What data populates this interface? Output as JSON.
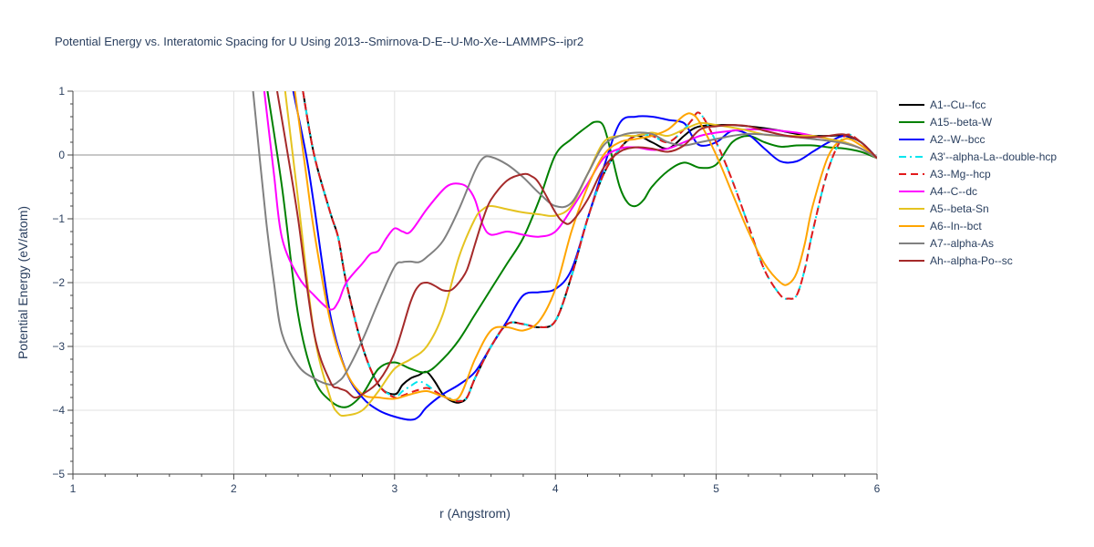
{
  "chart_data": {
    "type": "line",
    "title": "Potential Energy vs. Interatomic Spacing for U Using 2013--Smirnova-D-E--U-Mo-Xe--LAMMPS--ipr2",
    "xlabel": "r (Angstrom)",
    "ylabel": "Potential Energy (eV/atom)",
    "xlim": [
      1,
      6
    ],
    "ylim": [
      -5,
      1
    ],
    "xticks": [
      1,
      2,
      3,
      4,
      5,
      6
    ],
    "xtick_labels": [
      "1",
      "2",
      "3",
      "4",
      "5",
      "6"
    ],
    "yticks": [
      -5,
      -4,
      -3,
      -2,
      -1,
      0,
      1
    ],
    "ytick_labels": [
      "−5",
      "−4",
      "−3",
      "−2",
      "−1",
      "0",
      "1"
    ],
    "grid": true,
    "legend_position": "right",
    "series": [
      {
        "name": "A1--Cu--fcc",
        "color": "#000000",
        "dash": "solid",
        "x": [
          2.43,
          2.5,
          2.6,
          2.65,
          2.7,
          2.8,
          2.9,
          3.0,
          3.05,
          3.1,
          3.15,
          3.2,
          3.25,
          3.3,
          3.35,
          3.4,
          3.45,
          3.5,
          3.6,
          3.7,
          3.8,
          3.9,
          4.0,
          4.1,
          4.2,
          4.3,
          4.4,
          4.5,
          4.6,
          4.7,
          4.8,
          4.85,
          4.9,
          5.0,
          5.1,
          5.2,
          5.3,
          5.4,
          5.5,
          5.6,
          5.7,
          5.8,
          5.9,
          6.0
        ],
        "y": [
          1.0,
          0.0,
          -0.9,
          -1.3,
          -2.0,
          -3.0,
          -3.6,
          -3.75,
          -3.6,
          -3.5,
          -3.45,
          -3.4,
          -3.55,
          -3.75,
          -3.85,
          -3.88,
          -3.8,
          -3.5,
          -3.0,
          -2.65,
          -2.65,
          -2.7,
          -2.6,
          -1.9,
          -1.0,
          -0.3,
          0.1,
          0.3,
          0.2,
          0.1,
          0.3,
          0.4,
          0.45,
          0.47,
          0.47,
          0.45,
          0.42,
          0.38,
          0.33,
          0.3,
          0.3,
          0.3,
          0.2,
          -0.05
        ]
      },
      {
        "name": "A15--beta-W",
        "color": "#008000",
        "dash": "solid",
        "x": [
          2.21,
          2.3,
          2.4,
          2.5,
          2.6,
          2.7,
          2.8,
          2.9,
          3.0,
          3.1,
          3.2,
          3.3,
          3.4,
          3.5,
          3.6,
          3.7,
          3.8,
          3.9,
          4.0,
          4.1,
          4.2,
          4.25,
          4.3,
          4.35,
          4.4,
          4.45,
          4.5,
          4.55,
          4.6,
          4.7,
          4.8,
          4.9,
          5.0,
          5.1,
          5.2,
          5.3,
          5.4,
          5.5,
          5.6,
          5.7,
          5.8,
          5.9,
          6.0
        ],
        "y": [
          1.0,
          -0.5,
          -2.5,
          -3.5,
          -3.85,
          -3.95,
          -3.75,
          -3.35,
          -3.25,
          -3.35,
          -3.4,
          -3.2,
          -2.9,
          -2.5,
          -2.1,
          -1.7,
          -1.3,
          -0.7,
          0.0,
          0.25,
          0.45,
          0.52,
          0.45,
          0.0,
          -0.5,
          -0.75,
          -0.8,
          -0.7,
          -0.5,
          -0.25,
          -0.12,
          -0.2,
          -0.15,
          0.2,
          0.3,
          0.2,
          0.13,
          0.15,
          0.15,
          0.12,
          0.1,
          0.05,
          -0.05
        ]
      },
      {
        "name": "A2--W--bcc",
        "color": "#0000ff",
        "dash": "solid",
        "x": [
          2.37,
          2.45,
          2.5,
          2.6,
          2.7,
          2.8,
          2.9,
          3.0,
          3.1,
          3.15,
          3.2,
          3.3,
          3.4,
          3.5,
          3.6,
          3.7,
          3.8,
          3.9,
          4.0,
          4.1,
          4.2,
          4.3,
          4.4,
          4.5,
          4.6,
          4.7,
          4.8,
          4.85,
          4.9,
          5.0,
          5.1,
          5.2,
          5.3,
          5.4,
          5.5,
          5.6,
          5.7,
          5.8,
          5.9,
          6.0
        ],
        "y": [
          1.0,
          0.0,
          -0.8,
          -2.5,
          -3.4,
          -3.8,
          -4.0,
          -4.1,
          -4.15,
          -4.1,
          -3.95,
          -3.75,
          -3.6,
          -3.4,
          -3.0,
          -2.6,
          -2.2,
          -2.15,
          -2.1,
          -1.8,
          -1.0,
          -0.2,
          0.5,
          0.6,
          0.6,
          0.55,
          0.5,
          0.3,
          0.15,
          0.2,
          0.38,
          0.32,
          0.1,
          -0.1,
          -0.1,
          0.05,
          0.2,
          0.3,
          0.2,
          -0.05
        ]
      },
      {
        "name": "A3'--alpha-La--double-hcp",
        "color": "#00e5ee",
        "dash": "dashdot",
        "x": [
          2.43,
          2.5,
          2.6,
          2.65,
          2.7,
          2.8,
          2.9,
          3.0,
          3.05,
          3.1,
          3.15,
          3.2,
          3.25,
          3.3,
          3.35,
          3.4,
          3.45,
          3.5,
          3.6,
          3.7,
          3.8,
          3.9,
          4.0,
          4.1,
          4.2,
          4.3,
          4.4,
          4.5,
          4.6,
          4.7,
          4.8,
          4.85,
          4.9,
          5.0,
          5.1,
          5.2,
          5.3,
          5.4,
          5.45,
          5.5,
          5.55,
          5.6,
          5.7,
          5.8,
          5.9,
          6.0
        ],
        "y": [
          1.0,
          0.0,
          -0.9,
          -1.3,
          -2.0,
          -3.0,
          -3.6,
          -3.78,
          -3.7,
          -3.62,
          -3.55,
          -3.6,
          -3.7,
          -3.78,
          -3.82,
          -3.85,
          -3.8,
          -3.5,
          -3.0,
          -2.65,
          -2.65,
          -2.7,
          -2.6,
          -1.9,
          -1.0,
          -0.3,
          0.1,
          0.3,
          0.3,
          0.2,
          0.4,
          0.55,
          0.65,
          0.2,
          -0.4,
          -1.1,
          -1.8,
          -2.2,
          -2.25,
          -2.2,
          -1.8,
          -1.2,
          -0.2,
          0.3,
          0.2,
          -0.05
        ]
      },
      {
        "name": "A3--Mg--hcp",
        "color": "#e31a1c",
        "dash": "dash",
        "x": [
          2.43,
          2.5,
          2.6,
          2.65,
          2.7,
          2.8,
          2.9,
          3.0,
          3.05,
          3.1,
          3.15,
          3.2,
          3.25,
          3.3,
          3.35,
          3.4,
          3.45,
          3.5,
          3.6,
          3.7,
          3.8,
          3.9,
          4.0,
          4.1,
          4.2,
          4.3,
          4.4,
          4.5,
          4.6,
          4.7,
          4.8,
          4.85,
          4.9,
          5.0,
          5.1,
          5.2,
          5.3,
          5.4,
          5.45,
          5.5,
          5.55,
          5.6,
          5.7,
          5.8,
          5.9,
          6.0
        ],
        "y": [
          1.0,
          0.0,
          -0.9,
          -1.3,
          -2.0,
          -3.0,
          -3.6,
          -3.8,
          -3.77,
          -3.72,
          -3.68,
          -3.65,
          -3.7,
          -3.78,
          -3.83,
          -3.86,
          -3.8,
          -3.5,
          -3.0,
          -2.65,
          -2.65,
          -2.7,
          -2.6,
          -1.9,
          -1.0,
          -0.3,
          0.1,
          0.3,
          0.3,
          0.2,
          0.4,
          0.55,
          0.65,
          0.2,
          -0.4,
          -1.1,
          -1.8,
          -2.2,
          -2.25,
          -2.2,
          -1.8,
          -1.2,
          -0.2,
          0.3,
          0.2,
          -0.05
        ]
      },
      {
        "name": "A4--C--dc",
        "color": "#ff00ff",
        "dash": "solid",
        "x": [
          2.19,
          2.25,
          2.3,
          2.4,
          2.5,
          2.6,
          2.65,
          2.7,
          2.8,
          2.85,
          2.9,
          2.95,
          3.0,
          3.05,
          3.1,
          3.2,
          3.3,
          3.35,
          3.4,
          3.45,
          3.5,
          3.55,
          3.6,
          3.7,
          3.8,
          3.9,
          4.0,
          4.1,
          4.2,
          4.3,
          4.4,
          4.5,
          4.6,
          4.7,
          4.8,
          4.9,
          5.0,
          5.1,
          5.2,
          5.3,
          5.4,
          5.5,
          5.6,
          5.7,
          5.8,
          5.9,
          6.0
        ],
        "y": [
          1.0,
          -0.3,
          -1.3,
          -1.9,
          -2.2,
          -2.42,
          -2.3,
          -2.0,
          -1.7,
          -1.55,
          -1.5,
          -1.3,
          -1.15,
          -1.2,
          -1.2,
          -0.85,
          -0.55,
          -0.46,
          -0.45,
          -0.5,
          -0.7,
          -1.1,
          -1.25,
          -1.2,
          -1.25,
          -1.28,
          -1.2,
          -0.85,
          -0.45,
          -0.05,
          0.1,
          0.12,
          0.08,
          0.1,
          0.2,
          0.3,
          0.35,
          0.38,
          0.4,
          0.4,
          0.38,
          0.35,
          0.3,
          0.25,
          0.2,
          0.1,
          -0.05
        ]
      },
      {
        "name": "A5--beta-Sn",
        "color": "#e5c320",
        "dash": "solid",
        "x": [
          2.32,
          2.4,
          2.5,
          2.6,
          2.65,
          2.7,
          2.8,
          2.9,
          3.0,
          3.1,
          3.2,
          3.3,
          3.4,
          3.5,
          3.55,
          3.6,
          3.7,
          3.8,
          3.9,
          4.0,
          4.1,
          4.2,
          4.3,
          4.4,
          4.5,
          4.6,
          4.7,
          4.8,
          4.9,
          5.0,
          5.1,
          5.2,
          5.3,
          5.4,
          5.5,
          5.6,
          5.7,
          5.8,
          5.9,
          6.0
        ],
        "y": [
          1.0,
          -0.7,
          -2.8,
          -3.8,
          -4.05,
          -4.08,
          -4.0,
          -3.7,
          -3.35,
          -3.2,
          -3.0,
          -2.5,
          -1.6,
          -1.0,
          -0.85,
          -0.8,
          -0.85,
          -0.9,
          -0.93,
          -0.95,
          -0.8,
          -0.3,
          0.2,
          0.3,
          0.3,
          0.35,
          0.3,
          0.4,
          0.5,
          0.47,
          0.43,
          0.38,
          0.32,
          0.3,
          0.3,
          0.3,
          0.25,
          0.2,
          0.1,
          -0.05
        ]
      },
      {
        "name": "A6--In--bct",
        "color": "#ffa500",
        "dash": "solid",
        "x": [
          2.38,
          2.45,
          2.5,
          2.6,
          2.7,
          2.8,
          2.9,
          3.0,
          3.1,
          3.2,
          3.3,
          3.4,
          3.5,
          3.6,
          3.7,
          3.8,
          3.9,
          4.0,
          4.1,
          4.2,
          4.3,
          4.4,
          4.5,
          4.6,
          4.7,
          4.8,
          4.85,
          4.9,
          5.0,
          5.1,
          5.2,
          5.3,
          5.4,
          5.45,
          5.5,
          5.55,
          5.6,
          5.7,
          5.8,
          5.9,
          6.0
        ],
        "y": [
          1.0,
          -0.3,
          -1.2,
          -2.6,
          -3.4,
          -3.75,
          -3.8,
          -3.82,
          -3.75,
          -3.7,
          -3.78,
          -3.8,
          -3.2,
          -2.75,
          -2.7,
          -2.75,
          -2.6,
          -2.1,
          -1.2,
          -0.5,
          0.0,
          0.2,
          0.25,
          0.3,
          0.4,
          0.62,
          0.64,
          0.5,
          0.0,
          -0.6,
          -1.2,
          -1.7,
          -2.0,
          -2.02,
          -1.85,
          -1.4,
          -0.8,
          0.0,
          0.25,
          0.15,
          -0.05
        ]
      },
      {
        "name": "A7--alpha-As",
        "color": "#808080",
        "dash": "solid",
        "x": [
          2.12,
          2.2,
          2.25,
          2.3,
          2.4,
          2.5,
          2.6,
          2.65,
          2.7,
          2.8,
          2.9,
          3.0,
          3.05,
          3.1,
          3.15,
          3.2,
          3.3,
          3.4,
          3.5,
          3.55,
          3.6,
          3.7,
          3.8,
          3.9,
          4.0,
          4.1,
          4.2,
          4.3,
          4.4,
          4.5,
          4.6,
          4.7,
          4.8,
          4.9,
          5.0,
          5.1,
          5.2,
          5.3,
          5.4,
          5.5,
          5.6,
          5.7,
          5.8,
          5.9,
          6.0
        ],
        "y": [
          1.0,
          -1.0,
          -2.0,
          -2.8,
          -3.3,
          -3.5,
          -3.6,
          -3.55,
          -3.4,
          -2.9,
          -2.3,
          -1.75,
          -1.68,
          -1.67,
          -1.68,
          -1.6,
          -1.35,
          -0.85,
          -0.25,
          -0.05,
          -0.03,
          -0.15,
          -0.35,
          -0.6,
          -0.8,
          -0.75,
          -0.3,
          0.15,
          0.3,
          0.35,
          0.33,
          0.2,
          0.15,
          0.2,
          0.25,
          0.3,
          0.33,
          0.32,
          0.3,
          0.28,
          0.25,
          0.22,
          0.18,
          0.1,
          -0.05
        ]
      },
      {
        "name": "Ah--alpha-Po--sc",
        "color": "#a52a2a",
        "dash": "solid",
        "x": [
          2.27,
          2.35,
          2.4,
          2.5,
          2.6,
          2.65,
          2.7,
          2.75,
          2.8,
          2.9,
          3.0,
          3.1,
          3.15,
          3.2,
          3.25,
          3.3,
          3.35,
          3.4,
          3.45,
          3.5,
          3.55,
          3.6,
          3.7,
          3.8,
          3.85,
          3.9,
          4.0,
          4.05,
          4.1,
          4.2,
          4.3,
          4.4,
          4.5,
          4.6,
          4.7,
          4.8,
          4.9,
          5.0,
          5.1,
          5.2,
          5.3,
          5.4,
          5.5,
          5.6,
          5.7,
          5.8,
          5.9,
          6.0
        ],
        "y": [
          1.0,
          -0.2,
          -1.0,
          -2.8,
          -3.55,
          -3.65,
          -3.7,
          -3.8,
          -3.75,
          -3.55,
          -3.1,
          -2.3,
          -2.05,
          -2.0,
          -2.05,
          -2.12,
          -2.12,
          -2.0,
          -1.8,
          -1.4,
          -1.0,
          -0.7,
          -0.4,
          -0.3,
          -0.33,
          -0.45,
          -0.9,
          -1.05,
          -1.05,
          -0.7,
          -0.2,
          0.05,
          0.12,
          0.1,
          0.05,
          0.15,
          0.4,
          0.45,
          0.47,
          0.45,
          0.38,
          0.32,
          0.28,
          0.28,
          0.3,
          0.32,
          0.2,
          -0.05
        ]
      }
    ]
  }
}
